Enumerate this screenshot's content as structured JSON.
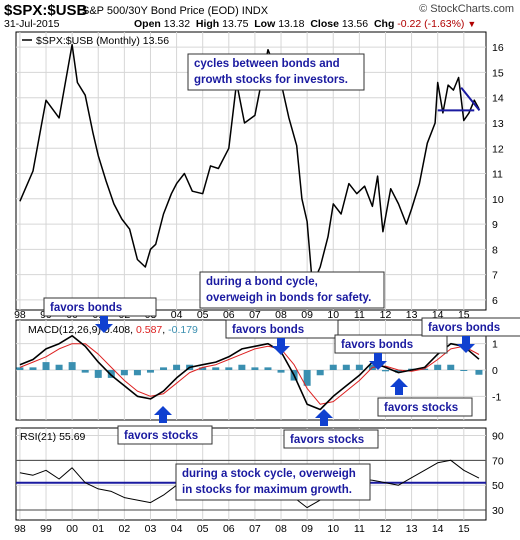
{
  "header": {
    "symbol": "$SPX:$USB",
    "description": "S&P 500/30Y Bond Price (EOD)  INDX",
    "site": "© StockCharts.com",
    "date": "31-Jul-2015",
    "open_label": "Open",
    "open": "13.32",
    "high_label": "High",
    "high": "13.75",
    "low_label": "Low",
    "low": "13.18",
    "close_label": "Close",
    "close": "13.56",
    "chg_label": "Chg",
    "chg": "-0.22 (-1.63%)"
  },
  "colors": {
    "price": "#000000",
    "macd": "#000000",
    "signal": "#dd2020",
    "histogram": "#3a8fb0",
    "rsi": "#000000",
    "annotation_text": "#1a1aa0",
    "arrow": "#1040d0",
    "trendline": "#1a1aa0",
    "grid": "#d6d6d6",
    "chg": "#b00000"
  },
  "annotations": [
    {
      "id": "bonds-stocks-cycle",
      "text": [
        "cycles between bonds and",
        "growth stocks for investors."
      ]
    },
    {
      "id": "bond-cycle",
      "text": [
        "during a bond cycle,",
        "overweigh in bonds for safety."
      ]
    },
    {
      "id": "favors-bonds-1",
      "text": [
        "favors bonds"
      ]
    },
    {
      "id": "favors-bonds-2",
      "text": [
        "favors bonds"
      ]
    },
    {
      "id": "favors-bonds-3",
      "text": [
        "favors bonds"
      ]
    },
    {
      "id": "favors-bonds-4",
      "text": [
        "favors bonds"
      ]
    },
    {
      "id": "favors-stocks-1",
      "text": [
        "favors stocks"
      ]
    },
    {
      "id": "favors-stocks-2",
      "text": [
        "favors stocks"
      ]
    },
    {
      "id": "favors-stocks-3",
      "text": [
        "favors stocks"
      ]
    },
    {
      "id": "stock-cycle",
      "text": [
        "during a stock cycle, overweigh",
        "in stocks for maximum growth."
      ]
    }
  ],
  "chart_data": [
    {
      "type": "line",
      "legend": "$SPX:$USB (Monthly) 13.56",
      "x_tick_labels": [
        "98",
        "99",
        "00",
        "01",
        "02",
        "03",
        "04",
        "05",
        "06",
        "07",
        "08",
        "09",
        "10",
        "11",
        "12",
        "13",
        "14",
        "15"
      ],
      "x": [
        1998.0,
        1998.5,
        1999.0,
        1999.5,
        2000.0,
        2000.2,
        2000.5,
        2000.8,
        2001.0,
        2001.3,
        2001.6,
        2001.9,
        2002.2,
        2002.5,
        2002.8,
        2003.0,
        2003.2,
        2003.5,
        2003.8,
        2004.0,
        2004.3,
        2004.6,
        2005.0,
        2005.3,
        2005.6,
        2006.0,
        2006.3,
        2006.6,
        2007.0,
        2007.3,
        2007.5,
        2007.8,
        2008.0,
        2008.3,
        2008.6,
        2008.8,
        2009.0,
        2009.2,
        2009.5,
        2009.8,
        2010.0,
        2010.3,
        2010.6,
        2010.9,
        2011.2,
        2011.5,
        2011.7,
        2011.9,
        2012.2,
        2012.5,
        2012.8,
        2013.0,
        2013.3,
        2013.6,
        2013.9,
        2014.0,
        2014.2,
        2014.4,
        2014.6,
        2014.8,
        2015.0,
        2015.2,
        2015.4,
        2015.58
      ],
      "y": [
        9.9,
        11.1,
        13.9,
        13.2,
        16.1,
        14.6,
        14.1,
        12.6,
        11.7,
        10.7,
        9.8,
        9.2,
        8.8,
        7.6,
        7.3,
        8.0,
        8.2,
        9.4,
        10.2,
        10.6,
        11.0,
        10.3,
        10.2,
        11.3,
        11.2,
        12.0,
        14.6,
        13.0,
        13.3,
        14.9,
        15.9,
        15.1,
        14.6,
        13.2,
        12.1,
        10.0,
        9.1,
        6.6,
        7.3,
        8.5,
        9.8,
        9.4,
        10.6,
        10.2,
        10.5,
        9.7,
        10.9,
        8.7,
        10.4,
        9.8,
        9.0,
        9.6,
        10.6,
        12.2,
        13.0,
        14.6,
        13.4,
        14.5,
        14.3,
        14.8,
        13.1,
        13.4,
        13.9,
        13.56
      ],
      "y_ticks": [
        6,
        7,
        8,
        9,
        10,
        11,
        12,
        13,
        14,
        15,
        16
      ],
      "ylim": [
        5.6,
        16.6
      ],
      "trendlines": [
        {
          "label": "horizontal support",
          "x": [
            2014.0,
            2015.4
          ],
          "y": [
            13.5,
            13.5
          ]
        },
        {
          "label": "descending resistance",
          "x": [
            2014.9,
            2015.6
          ],
          "y": [
            14.4,
            13.5
          ]
        }
      ]
    },
    {
      "type": "line",
      "legend_prefix": "MACD(12,26,9)",
      "legend_values": [
        "0.408",
        "0.587",
        "-0.179"
      ],
      "x": [
        1998.0,
        1998.5,
        1999.0,
        1999.5,
        2000.0,
        2000.5,
        2001.0,
        2001.5,
        2002.0,
        2002.5,
        2003.0,
        2003.5,
        2004.0,
        2004.5,
        2005.0,
        2005.5,
        2006.0,
        2006.5,
        2007.0,
        2007.5,
        2008.0,
        2008.5,
        2009.0,
        2009.5,
        2010.0,
        2010.5,
        2011.0,
        2011.5,
        2012.0,
        2012.5,
        2013.0,
        2013.5,
        2014.0,
        2014.5,
        2015.0,
        2015.58
      ],
      "series": [
        {
          "name": "MACD",
          "values": [
            0.2,
            0.4,
            0.8,
            1.0,
            1.3,
            0.9,
            0.3,
            -0.2,
            -0.6,
            -1.0,
            -1.1,
            -0.8,
            -0.3,
            0.1,
            0.2,
            0.3,
            0.5,
            0.8,
            0.9,
            1.0,
            0.7,
            -0.2,
            -1.3,
            -1.5,
            -1.0,
            -0.6,
            -0.2,
            0.3,
            0.1,
            -0.1,
            0.0,
            0.1,
            0.6,
            1.0,
            0.9,
            0.41
          ]
        },
        {
          "name": "Signal",
          "values": [
            0.1,
            0.3,
            0.5,
            0.8,
            1.0,
            1.0,
            0.6,
            0.1,
            -0.4,
            -0.8,
            -1.0,
            -0.9,
            -0.5,
            -0.1,
            0.1,
            0.2,
            0.4,
            0.6,
            0.8,
            0.9,
            0.8,
            0.2,
            -0.7,
            -1.3,
            -1.2,
            -0.8,
            -0.4,
            0.1,
            0.15,
            0.0,
            -0.05,
            0.05,
            0.4,
            0.8,
            0.9,
            0.59
          ]
        },
        {
          "name": "Histogram",
          "values": [
            0.1,
            0.1,
            0.3,
            0.2,
            0.3,
            -0.1,
            -0.3,
            -0.3,
            -0.2,
            -0.2,
            -0.1,
            0.1,
            0.2,
            0.2,
            0.1,
            0.1,
            0.1,
            0.2,
            0.1,
            0.1,
            -0.1,
            -0.4,
            -0.6,
            -0.2,
            0.2,
            0.2,
            0.2,
            0.2,
            -0.05,
            -0.1,
            0.05,
            0.05,
            0.2,
            0.2,
            0.0,
            -0.18
          ]
        }
      ],
      "y_ticks": [
        -1,
        0,
        1
      ],
      "ylim": [
        -1.9,
        1.9
      ]
    },
    {
      "type": "line",
      "legend": "RSI(21) 55.69",
      "x": [
        1998.0,
        1998.5,
        1999.0,
        1999.5,
        2000.0,
        2000.5,
        2001.0,
        2001.5,
        2002.0,
        2002.5,
        2003.0,
        2003.5,
        2004.0,
        2004.5,
        2005.0,
        2005.5,
        2006.0,
        2006.5,
        2007.0,
        2007.5,
        2008.0,
        2008.5,
        2009.0,
        2009.5,
        2010.0,
        2010.5,
        2011.0,
        2011.5,
        2012.0,
        2012.5,
        2013.0,
        2013.5,
        2014.0,
        2014.5,
        2015.0,
        2015.58
      ],
      "y": [
        60,
        58,
        62,
        55,
        64,
        52,
        47,
        45,
        40,
        38,
        36,
        42,
        50,
        52,
        50,
        53,
        55,
        60,
        58,
        62,
        52,
        40,
        32,
        38,
        50,
        52,
        55,
        54,
        52,
        50,
        56,
        62,
        68,
        70,
        62,
        55.69
      ],
      "y_ticks": [
        30,
        50,
        70,
        90
      ],
      "ylim": [
        22,
        96
      ],
      "reference_lines": [
        30,
        70
      ]
    }
  ]
}
